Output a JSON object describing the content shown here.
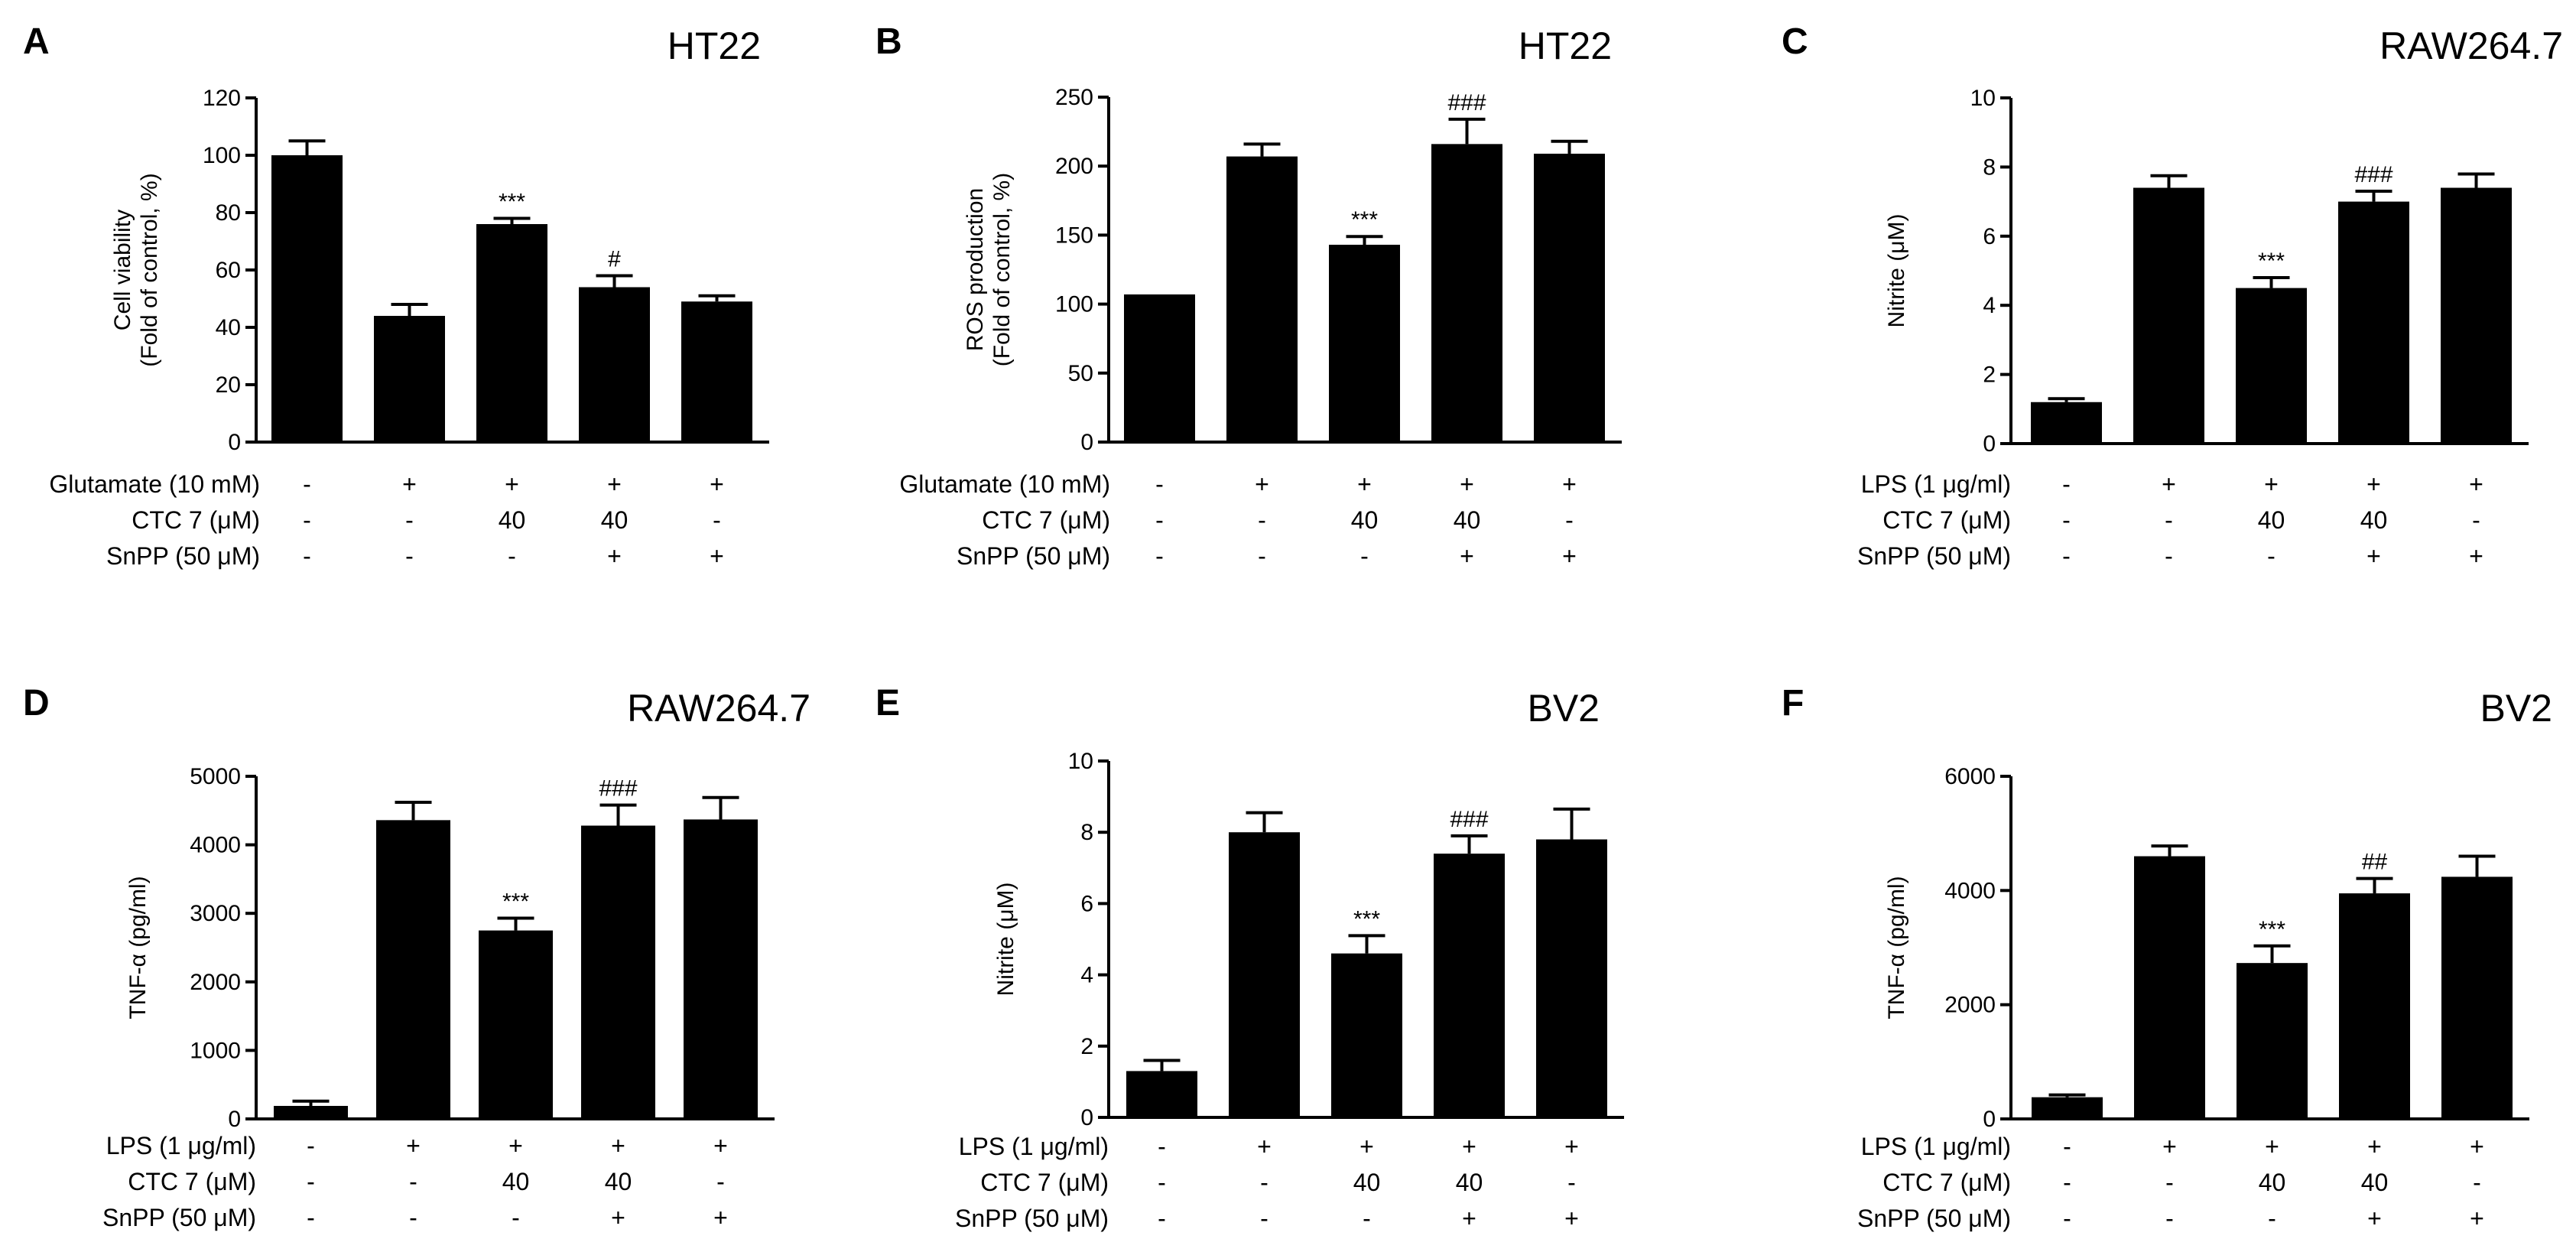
{
  "chart_data": [
    {
      "panel": "A",
      "type": "bar",
      "title": "HT22",
      "ylabel": [
        "Cell viability",
        "(Fold of control, %)"
      ],
      "ylim": [
        0,
        120
      ],
      "yticks": [
        0,
        20,
        40,
        60,
        80,
        100,
        120
      ],
      "yticklabels": [
        "0",
        "20",
        "40",
        "60",
        "80",
        "100",
        "120"
      ],
      "values": [
        100,
        44,
        76,
        54,
        49
      ],
      "errors": [
        5,
        4,
        2,
        4,
        2
      ],
      "significance": [
        "",
        "",
        "***",
        "#",
        ""
      ],
      "conditions": [
        {
          "label": "Glutamate (10 mM)",
          "values": [
            "-",
            "+",
            "+",
            "+",
            "+"
          ]
        },
        {
          "label": "CTC 7 (μM)",
          "values": [
            "-",
            "-",
            "40",
            "40",
            "-"
          ]
        },
        {
          "label": "SnPP (50 μM)",
          "values": [
            "-",
            "-",
            "-",
            "+",
            "+"
          ]
        }
      ]
    },
    {
      "panel": "B",
      "type": "bar",
      "title": "HT22",
      "ylabel": [
        "ROS production",
        "(Fold of control, %)"
      ],
      "ylim": [
        0,
        250
      ],
      "yticks": [
        0,
        50,
        100,
        150,
        200,
        250
      ],
      "yticklabels": [
        "0",
        "50",
        "100",
        "150",
        "200",
        "250"
      ],
      "values": [
        107,
        207,
        143,
        216,
        209
      ],
      "errors": [
        0,
        9,
        6,
        18,
        9
      ],
      "significance": [
        "",
        "",
        "***",
        "###",
        ""
      ],
      "conditions": [
        {
          "label": "Glutamate (10 mM)",
          "values": [
            "-",
            "+",
            "+",
            "+",
            "+"
          ]
        },
        {
          "label": "CTC 7 (μM)",
          "values": [
            "-",
            "-",
            "40",
            "40",
            "-"
          ]
        },
        {
          "label": "SnPP (50 μM)",
          "values": [
            "-",
            "-",
            "-",
            "+",
            "+"
          ]
        }
      ]
    },
    {
      "panel": "C",
      "type": "bar",
      "title": "RAW264.7",
      "ylabel": [
        "Nitrite (μM)"
      ],
      "ylim": [
        0,
        10
      ],
      "yticks": [
        0,
        2,
        4,
        6,
        8,
        10
      ],
      "yticklabels": [
        "0",
        "2",
        "4",
        "6",
        "8",
        "10"
      ],
      "values": [
        1.2,
        7.4,
        4.5,
        7.0,
        7.4
      ],
      "errors": [
        0.1,
        0.35,
        0.3,
        0.3,
        0.4
      ],
      "significance": [
        "",
        "",
        "***",
        "###",
        ""
      ],
      "conditions": [
        {
          "label": "LPS (1 μg/ml)",
          "values": [
            "-",
            "+",
            "+",
            "+",
            "+"
          ]
        },
        {
          "label": "CTC 7 (μM)",
          "values": [
            "-",
            "-",
            "40",
            "40",
            "-"
          ]
        },
        {
          "label": "SnPP (50 μM)",
          "values": [
            "-",
            "-",
            "-",
            "+",
            "+"
          ]
        }
      ]
    },
    {
      "panel": "D",
      "type": "bar",
      "title": "RAW264.7",
      "ylabel": [
        "TNF-α (pg/ml)"
      ],
      "ylim": [
        0,
        5000
      ],
      "yticks": [
        0,
        1000,
        2000,
        3000,
        4000,
        5000
      ],
      "yticklabels": [
        "0",
        "1000",
        "2000",
        "3000",
        "4000",
        "5000"
      ],
      "values": [
        190,
        4360,
        2750,
        4280,
        4370
      ],
      "errors": [
        70,
        260,
        180,
        300,
        320
      ],
      "significance": [
        "",
        "",
        "***",
        "###",
        ""
      ],
      "conditions": [
        {
          "label": "LPS (1 μg/ml)",
          "values": [
            "-",
            "+",
            "+",
            "+",
            "+"
          ]
        },
        {
          "label": "CTC 7 (μM)",
          "values": [
            "-",
            "-",
            "40",
            "40",
            "-"
          ]
        },
        {
          "label": "SnPP (50 μM)",
          "values": [
            "-",
            "-",
            "-",
            "+",
            "+"
          ]
        }
      ]
    },
    {
      "panel": "E",
      "type": "bar",
      "title": "BV2",
      "ylabel": [
        "Nitrite (μM)"
      ],
      "ylim": [
        0,
        10
      ],
      "yticks": [
        0,
        2,
        4,
        6,
        8,
        10
      ],
      "yticklabels": [
        "0",
        "2",
        "4",
        "6",
        "8",
        "10"
      ],
      "values": [
        1.3,
        8.0,
        4.6,
        7.4,
        7.8
      ],
      "errors": [
        0.3,
        0.55,
        0.5,
        0.5,
        0.85
      ],
      "significance": [
        "",
        "",
        "***",
        "###",
        ""
      ],
      "conditions": [
        {
          "label": "LPS (1 μg/ml)",
          "values": [
            "-",
            "+",
            "+",
            "+",
            "+"
          ]
        },
        {
          "label": "CTC 7 (μM)",
          "values": [
            "-",
            "-",
            "40",
            "40",
            "-"
          ]
        },
        {
          "label": "SnPP (50 μM)",
          "values": [
            "-",
            "-",
            "-",
            "+",
            "+"
          ]
        }
      ]
    },
    {
      "panel": "F",
      "type": "bar",
      "title": "BV2",
      "ylabel": [
        "TNF-α (pg/ml)"
      ],
      "ylim": [
        0,
        6000
      ],
      "yticks": [
        0,
        2000,
        4000,
        6000
      ],
      "yticklabels": [
        "0",
        "2000",
        "4000",
        "6000"
      ],
      "values": [
        380,
        4600,
        2730,
        3950,
        4240
      ],
      "errors": [
        40,
        180,
        300,
        260,
        360
      ],
      "significance": [
        "",
        "",
        "***",
        "##",
        ""
      ],
      "conditions": [
        {
          "label": "LPS (1 μg/ml)",
          "values": [
            "-",
            "+",
            "+",
            "+",
            "+"
          ]
        },
        {
          "label": "CTC 7 (μM)",
          "values": [
            "-",
            "-",
            "40",
            "40",
            "-"
          ]
        },
        {
          "label": "SnPP (50 μM)",
          "values": [
            "-",
            "-",
            "-",
            "+",
            "+"
          ]
        }
      ]
    }
  ]
}
